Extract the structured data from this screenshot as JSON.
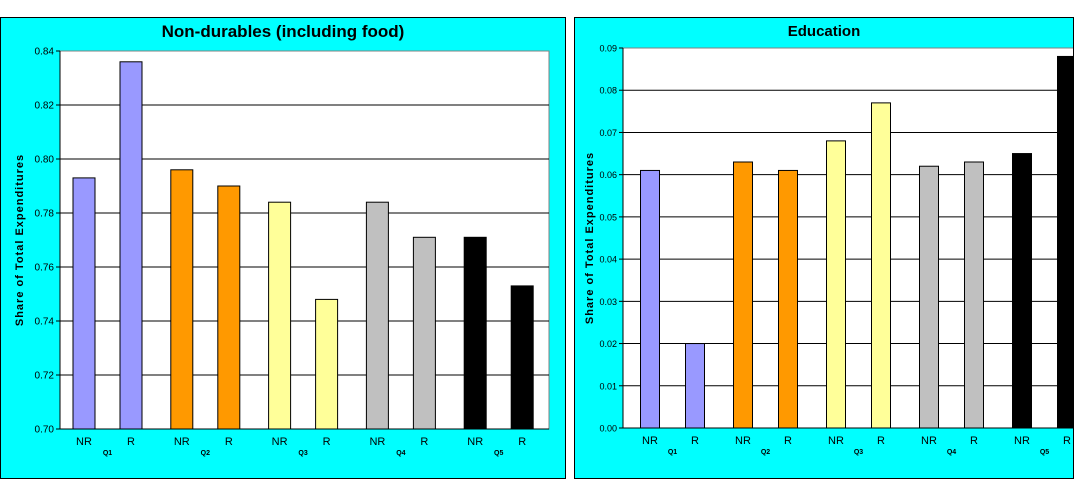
{
  "chart_data": [
    {
      "type": "bar",
      "title": "Non-durables (including food)",
      "ylabel": "Share of Total Expenditures",
      "xlabel": "",
      "ylim": [
        0.7,
        0.84
      ],
      "ytick_step": 0.02,
      "ytick_decimals": 2,
      "grid": true,
      "legend": "none",
      "groups": [
        "Q1",
        "Q2",
        "Q3",
        "Q4",
        "Q5"
      ],
      "bar_labels": [
        "NR",
        "R"
      ],
      "group_colors": [
        "#9999ff",
        "#ff9900",
        "#ffff99",
        "#c0c0c0",
        "#000000"
      ],
      "values": [
        [
          0.793,
          0.836
        ],
        [
          0.796,
          0.79
        ],
        [
          0.784,
          0.748
        ],
        [
          0.784,
          0.771
        ],
        [
          0.771,
          0.753
        ]
      ]
    },
    {
      "type": "bar",
      "title": "Education",
      "ylabel": "Share of Total Expenditures",
      "xlabel": "",
      "ylim": [
        0.0,
        0.09
      ],
      "ytick_step": 0.01,
      "ytick_decimals": 2,
      "grid": true,
      "legend": "none",
      "groups": [
        "Q1",
        "Q2",
        "Q3",
        "Q4",
        "Q5"
      ],
      "bar_labels": [
        "NR",
        "R"
      ],
      "group_colors": [
        "#9999ff",
        "#ff9900",
        "#ffff99",
        "#c0c0c0",
        "#000000"
      ],
      "values": [
        [
          0.061,
          0.02
        ],
        [
          0.063,
          0.061
        ],
        [
          0.068,
          0.077
        ],
        [
          0.062,
          0.063
        ],
        [
          0.065,
          0.088
        ]
      ]
    }
  ]
}
